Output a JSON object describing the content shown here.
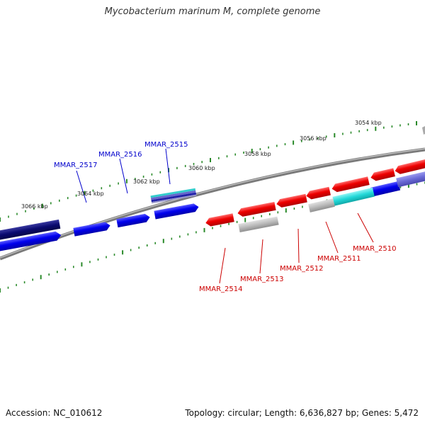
{
  "title": "Mycobacterium marinum M, complete genome",
  "footer": {
    "accession": "Accession: NC_010612",
    "summary": "Topology: circular; Length: 6,636,827 bp; Genes: 5,472"
  },
  "colors": {
    "forward_gene": "#0000ee",
    "reverse_gene": "#ee0000",
    "forward_label": "#0000cc",
    "reverse_label": "#cc0000",
    "backbone": "#777777",
    "ticks": "#2a8a2a"
  },
  "tick_labels": [
    "3054 kbp",
    "3056 kbp",
    "3058 kbp",
    "3060 kbp",
    "3062 kbp",
    "3064 kbp",
    "3066 kbp"
  ],
  "forward_labels": [
    "MMAR_2517",
    "MMAR_2516",
    "MMAR_2515"
  ],
  "reverse_labels": [
    "MMAR_2514",
    "MMAR_2513",
    "MMAR_2512",
    "MMAR_2511",
    "MMAR_2510"
  ]
}
